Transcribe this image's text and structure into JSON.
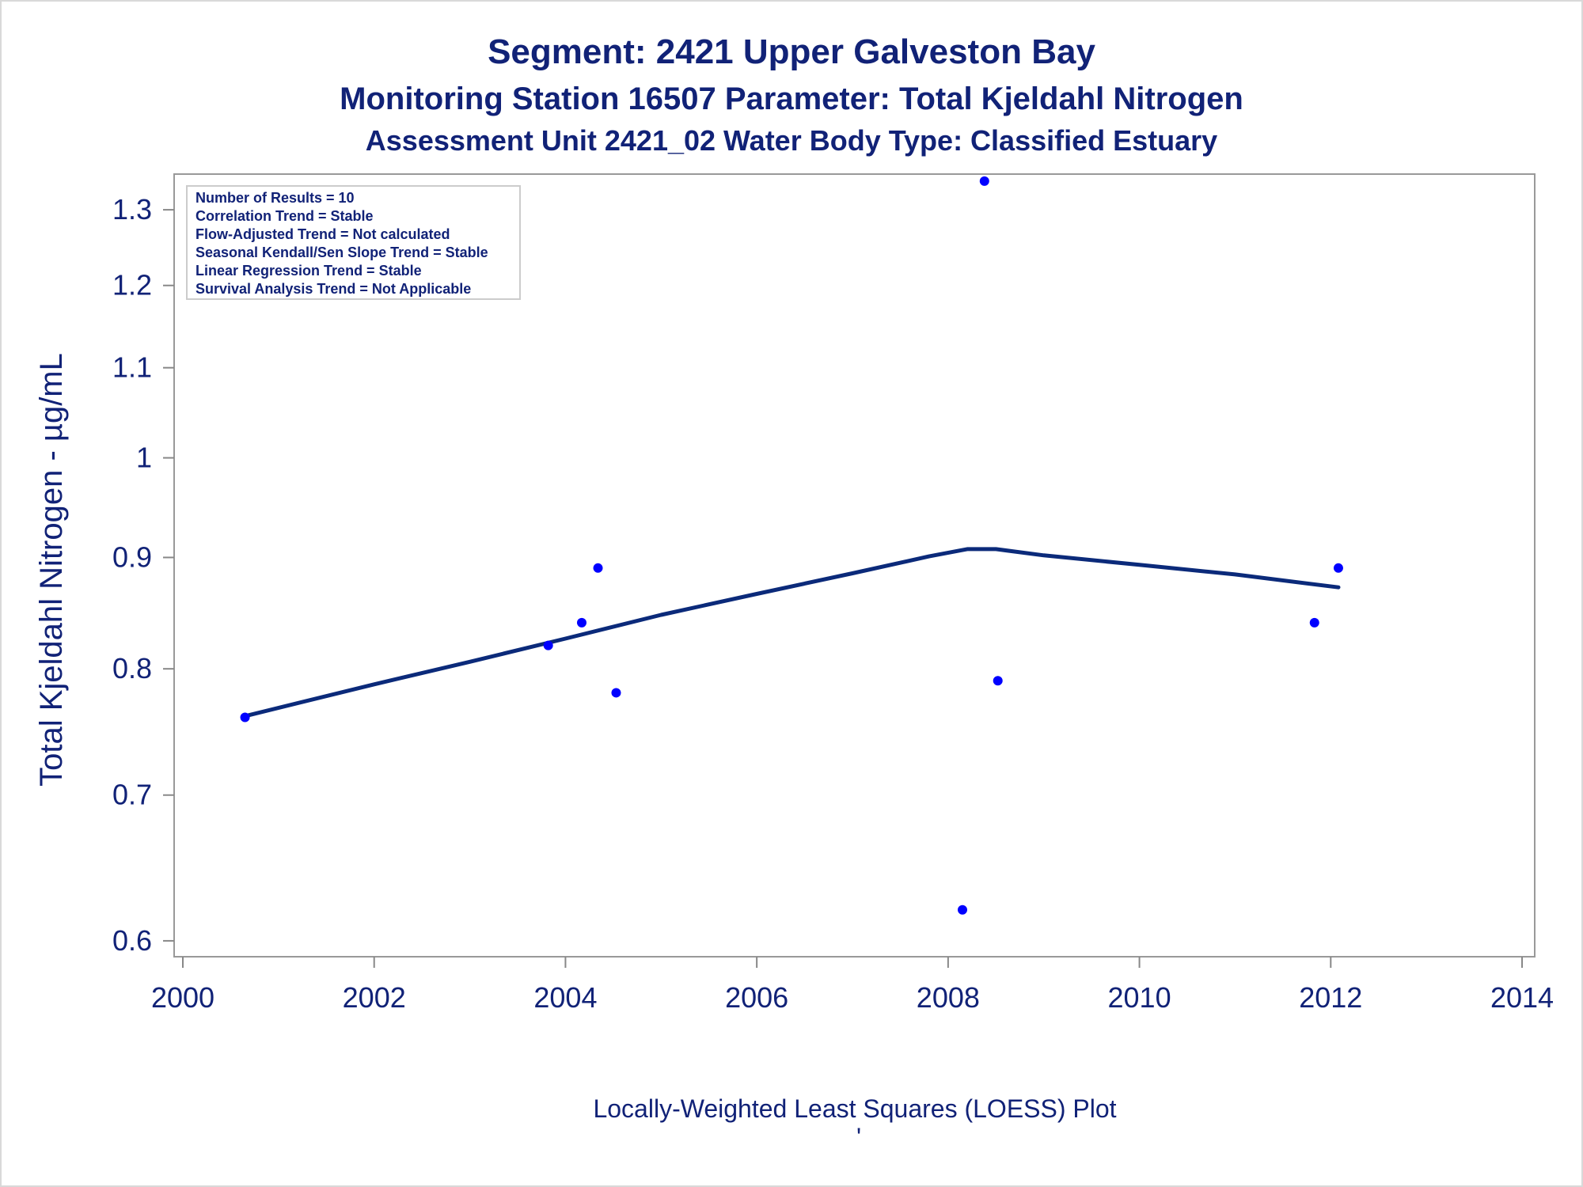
{
  "chart_data": {
    "type": "scatter",
    "title": "Segment: 2421  Upper Galveston Bay",
    "subtitle1": "Monitoring Station 16507 Parameter: Total Kjeldahl Nitrogen",
    "subtitle2": "Assessment Unit 2421_02   Water Body Type: Classified Estuary",
    "xlabel": "",
    "ylabel": "Total Kjeldahl Nitrogen -  µg/mL",
    "footnote": "Locally-Weighted Least Squares (LOESS) Plot",
    "footnote2": "'",
    "y_scale": "log",
    "xlim": [
      2000,
      2014
    ],
    "ylim": [
      0.59,
      1.35
    ],
    "x_ticks": [
      2000,
      2002,
      2004,
      2006,
      2008,
      2010,
      2012,
      2014
    ],
    "x_tick_labels": [
      "2000",
      "2002",
      "2004",
      "2006",
      "2008",
      "2010",
      "2012",
      "2014"
    ],
    "y_ticks": [
      0.6,
      0.7,
      0.8,
      0.9,
      1.0,
      1.1,
      1.2,
      1.3
    ],
    "y_tick_labels": [
      "0.6",
      "0.7",
      "0.8",
      "0.9",
      "1",
      "1.1",
      "1.2",
      "1.3"
    ],
    "grid": false,
    "legend": "none",
    "series": [
      {
        "type": "scatter",
        "color": "#0000ff",
        "points": [
          {
            "x": 2000.65,
            "y": 0.76
          },
          {
            "x": 2003.82,
            "y": 0.82
          },
          {
            "x": 2004.17,
            "y": 0.84
          },
          {
            "x": 2004.34,
            "y": 0.89
          },
          {
            "x": 2004.53,
            "y": 0.78
          },
          {
            "x": 2008.15,
            "y": 0.62
          },
          {
            "x": 2008.38,
            "y": 1.34
          },
          {
            "x": 2008.52,
            "y": 0.79
          },
          {
            "x": 2011.83,
            "y": 0.84
          },
          {
            "x": 2012.08,
            "y": 0.89
          }
        ]
      },
      {
        "type": "line",
        "color": "#0b2a7a",
        "points": [
          {
            "x": 2000.65,
            "y": 0.761
          },
          {
            "x": 2002.0,
            "y": 0.787
          },
          {
            "x": 2003.0,
            "y": 0.806
          },
          {
            "x": 2004.0,
            "y": 0.826
          },
          {
            "x": 2005.0,
            "y": 0.847
          },
          {
            "x": 2006.0,
            "y": 0.866
          },
          {
            "x": 2007.0,
            "y": 0.885
          },
          {
            "x": 2007.8,
            "y": 0.901
          },
          {
            "x": 2008.2,
            "y": 0.908
          },
          {
            "x": 2008.5,
            "y": 0.908
          },
          {
            "x": 2009.0,
            "y": 0.902
          },
          {
            "x": 2010.0,
            "y": 0.893
          },
          {
            "x": 2011.0,
            "y": 0.884
          },
          {
            "x": 2012.08,
            "y": 0.872
          }
        ]
      }
    ],
    "annotations": [
      "Number of Results = 10",
      "Correlation Trend = Stable",
      "Flow-Adjusted Trend = Not calculated",
      "Seasonal Kendall/Sen Slope Trend = Stable",
      "Linear Regression Trend = Stable",
      "Survival Analysis Trend = Not Applicable"
    ]
  }
}
